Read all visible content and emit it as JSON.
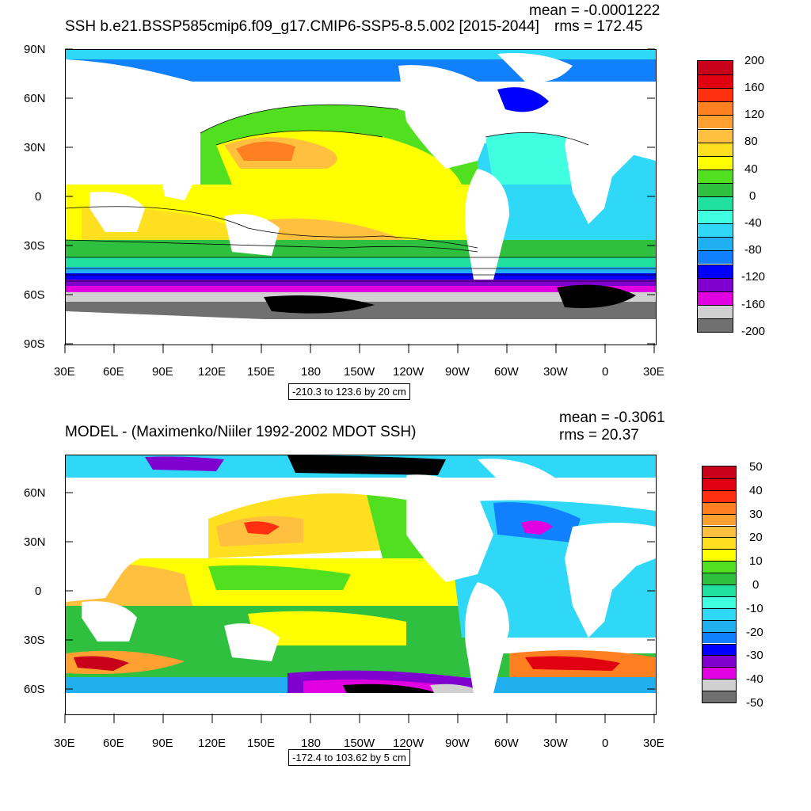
{
  "panels": [
    {
      "title": "SSH b.e21.BSSP585cmip6.f09_g17.CMIP6-SSP5-8.5.002 [2015-2044]",
      "mean_text": "mean = -0.0001222",
      "rms_text": "rms = 172.45",
      "range_text": "-210.3 to 123.6 by 20 cm",
      "lat_labels": [
        "90N",
        "60N",
        "30N",
        "0",
        "30S",
        "60S",
        "90S"
      ],
      "lon_labels": [
        "30E",
        "60E",
        "90E",
        "120E",
        "150E",
        "180",
        "150W",
        "120W",
        "90W",
        "60W",
        "30W",
        "0",
        "30E"
      ],
      "colorbar_labels": [
        "200",
        "160",
        "120",
        "80",
        "40",
        "0",
        "-40",
        "-80",
        "-120",
        "-160",
        "-200"
      ],
      "colorbar_colors": [
        "#c8001a",
        "#e00010",
        "#ff3010",
        "#ff8020",
        "#ffa030",
        "#ffc040",
        "#ffe020",
        "#ffff00",
        "#50e020",
        "#30c040",
        "#20e0a0",
        "#40ffe0",
        "#30d8f8",
        "#20b0f0",
        "#1080ff",
        "#0000ff",
        "#8000d0",
        "#e000e0",
        "#d0d0d0",
        "#707070"
      ]
    },
    {
      "title": "MODEL - (Maximenko/Niiler 1992-2002 MDOT SSH)",
      "mean_text": "mean = -0.3061",
      "rms_text": "rms = 20.37",
      "range_text": "-172.4 to 103.62 by 5 cm",
      "lat_labels": [
        "60N",
        "30N",
        "0",
        "30S",
        "60S"
      ],
      "lon_labels": [
        "30E",
        "60E",
        "90E",
        "120E",
        "150E",
        "180",
        "150W",
        "120W",
        "90W",
        "60W",
        "30W",
        "0",
        "30E"
      ],
      "colorbar_labels": [
        "50",
        "40",
        "30",
        "20",
        "10",
        "0",
        "-10",
        "-20",
        "-30",
        "-40",
        "-50"
      ],
      "colorbar_colors": [
        "#c8001a",
        "#e00010",
        "#ff3010",
        "#ff8020",
        "#ffa030",
        "#ffc040",
        "#ffe020",
        "#ffff00",
        "#50e020",
        "#30c040",
        "#20e0a0",
        "#40ffe0",
        "#30d8f8",
        "#20b0f0",
        "#1080ff",
        "#0000ff",
        "#8000d0",
        "#e000e0",
        "#d0d0d0",
        "#707070"
      ]
    }
  ]
}
